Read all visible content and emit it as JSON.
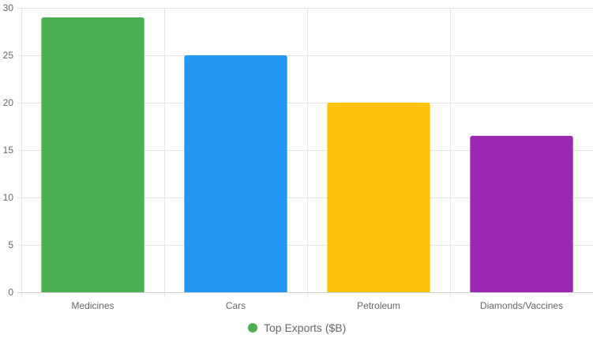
{
  "chart_data": {
    "type": "bar",
    "title": "",
    "xlabel": "",
    "ylabel": "",
    "categories": [
      "Medicines",
      "Cars",
      "Petroleum",
      "Diamonds/Vaccines"
    ],
    "series": [
      {
        "name": "Top Exports ($B)",
        "values": [
          29,
          25,
          20,
          16.5
        ],
        "colors": [
          "#4CAF50",
          "#2196F3",
          "#FFC107",
          "#9C27B0"
        ]
      }
    ],
    "ylim": [
      0,
      30
    ],
    "yticks": [
      0,
      5,
      10,
      15,
      20,
      25,
      30
    ],
    "grid": true,
    "legend_position": "bottom"
  },
  "legend": {
    "label": "Top Exports ($B)",
    "color": "#4CAF50"
  }
}
